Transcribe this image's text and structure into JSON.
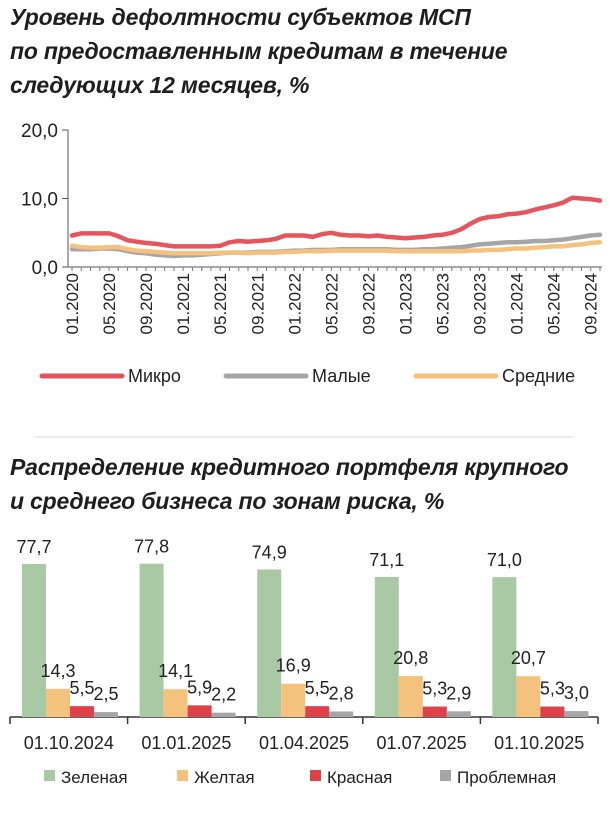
{
  "titles": {
    "chart1": [
      "Уровень дефолтности субъектов МСП",
      "по предоставленным кредитам в течение",
      "следующих 12 месяцев, %"
    ],
    "chart2": [
      "Распределение кредитного портфеля крупного",
      "и среднего бизнеса по зонам риска, %"
    ]
  },
  "chart_data": [
    {
      "type": "line",
      "title": "Уровень дефолтности субъектов МСП по предоставленным кредитам в течение следующих 12 месяцев, %",
      "xlabel": "",
      "ylabel": "",
      "ylim": [
        0,
        20
      ],
      "yticks": [
        "20,0",
        "10,0",
        "0,0"
      ],
      "ytick_values": [
        20,
        10,
        0
      ],
      "x_tick_labels": [
        "01.2020",
        "05.2020",
        "09.2020",
        "01.2021",
        "05.2021",
        "09.2021",
        "01.2022",
        "05.2022",
        "09.2022",
        "01.2023",
        "05.2023",
        "09.2023",
        "01.2024",
        "05.2024",
        "09.2024"
      ],
      "x": [
        "01.2020",
        "02.2020",
        "03.2020",
        "04.2020",
        "05.2020",
        "06.2020",
        "07.2020",
        "08.2020",
        "09.2020",
        "10.2020",
        "11.2020",
        "12.2020",
        "01.2021",
        "02.2021",
        "03.2021",
        "04.2021",
        "05.2021",
        "06.2021",
        "07.2021",
        "08.2021",
        "09.2021",
        "10.2021",
        "11.2021",
        "12.2021",
        "01.2022",
        "02.2022",
        "03.2022",
        "04.2022",
        "05.2022",
        "06.2022",
        "07.2022",
        "08.2022",
        "09.2022",
        "10.2022",
        "11.2022",
        "12.2022",
        "01.2023",
        "02.2023",
        "03.2023",
        "04.2023",
        "05.2023",
        "06.2023",
        "07.2023",
        "08.2023",
        "09.2023",
        "10.2023",
        "11.2023",
        "12.2023",
        "01.2024",
        "02.2024",
        "03.2024",
        "04.2024",
        "05.2024",
        "06.2024",
        "07.2024",
        "08.2024",
        "09.2024",
        "10.2024"
      ],
      "series": [
        {
          "name": "Микро",
          "color": "#e5555c",
          "values": [
            4.6,
            4.9,
            4.9,
            4.9,
            4.9,
            4.5,
            3.9,
            3.7,
            3.5,
            3.4,
            3.2,
            3.0,
            3.0,
            3.0,
            3.0,
            3.0,
            3.1,
            3.6,
            3.8,
            3.7,
            3.8,
            3.9,
            4.1,
            4.6,
            4.6,
            4.6,
            4.4,
            4.8,
            5.0,
            4.7,
            4.6,
            4.6,
            4.5,
            4.6,
            4.4,
            4.3,
            4.2,
            4.3,
            4.4,
            4.6,
            4.7,
            5.0,
            5.5,
            6.3,
            7.0,
            7.3,
            7.4,
            7.7,
            7.8,
            8.0,
            8.4,
            8.7,
            9.0,
            9.4,
            10.1,
            10.0,
            9.9,
            9.7
          ]
        },
        {
          "name": "Малые",
          "color": "#a6a6a6",
          "values": [
            2.6,
            2.6,
            2.6,
            2.7,
            2.7,
            2.6,
            2.3,
            2.1,
            2.0,
            1.8,
            1.7,
            1.6,
            1.7,
            1.7,
            1.8,
            1.9,
            2.0,
            2.1,
            2.1,
            2.1,
            2.2,
            2.2,
            2.2,
            2.3,
            2.4,
            2.4,
            2.5,
            2.5,
            2.5,
            2.6,
            2.6,
            2.6,
            2.6,
            2.6,
            2.6,
            2.5,
            2.5,
            2.5,
            2.6,
            2.6,
            2.7,
            2.8,
            2.9,
            3.1,
            3.3,
            3.4,
            3.5,
            3.6,
            3.6,
            3.7,
            3.8,
            3.8,
            3.9,
            4.0,
            4.2,
            4.4,
            4.6,
            4.7
          ]
        },
        {
          "name": "Средние",
          "color": "#f5c27e",
          "values": [
            3.1,
            2.9,
            2.8,
            2.8,
            2.9,
            2.9,
            2.6,
            2.4,
            2.3,
            2.2,
            2.1,
            2.0,
            2.0,
            2.0,
            2.0,
            2.0,
            2.1,
            2.1,
            2.1,
            2.0,
            2.1,
            2.1,
            2.1,
            2.2,
            2.2,
            2.3,
            2.3,
            2.3,
            2.4,
            2.4,
            2.4,
            2.4,
            2.4,
            2.4,
            2.4,
            2.3,
            2.3,
            2.3,
            2.3,
            2.3,
            2.3,
            2.3,
            2.3,
            2.4,
            2.4,
            2.5,
            2.5,
            2.6,
            2.7,
            2.7,
            2.8,
            2.9,
            3.0,
            3.0,
            3.2,
            3.3,
            3.5,
            3.6
          ]
        }
      ],
      "legend": "bottom"
    },
    {
      "type": "bar",
      "title": "Распределение кредитного портфеля крупного и среднего бизнеса по зонам риска, %",
      "categories": [
        "01.10.2024",
        "01.01.2025",
        "01.04.2025",
        "01.07.2025",
        "01.10.2025"
      ],
      "series": [
        {
          "name": "Зеленая",
          "color": "#a9c9a4",
          "values": [
            77.7,
            77.8,
            74.9,
            71.1,
            71.0
          ],
          "labels": [
            "77,7",
            "77,8",
            "74,9",
            "71,1",
            "71,0"
          ]
        },
        {
          "name": "Желтая",
          "color": "#f5c27e",
          "values": [
            14.3,
            14.1,
            16.9,
            20.8,
            20.7
          ],
          "labels": [
            "14,3",
            "14,1",
            "16,9",
            "20,8",
            "20,7"
          ]
        },
        {
          "name": "Красная",
          "color": "#e0404a",
          "values": [
            5.5,
            5.9,
            5.5,
            5.3,
            5.3
          ],
          "labels": [
            "5,5",
            "5,9",
            "5,5",
            "5,3",
            "5,3"
          ]
        },
        {
          "name": "Проблемная",
          "color": "#a6a6a6",
          "values": [
            2.5,
            2.2,
            2.8,
            2.9,
            3.0
          ],
          "labels": [
            "2,5",
            "2,2",
            "2,8",
            "2,9",
            "3,0"
          ]
        }
      ],
      "ylim": [
        0,
        100
      ],
      "legend": "bottom"
    }
  ]
}
